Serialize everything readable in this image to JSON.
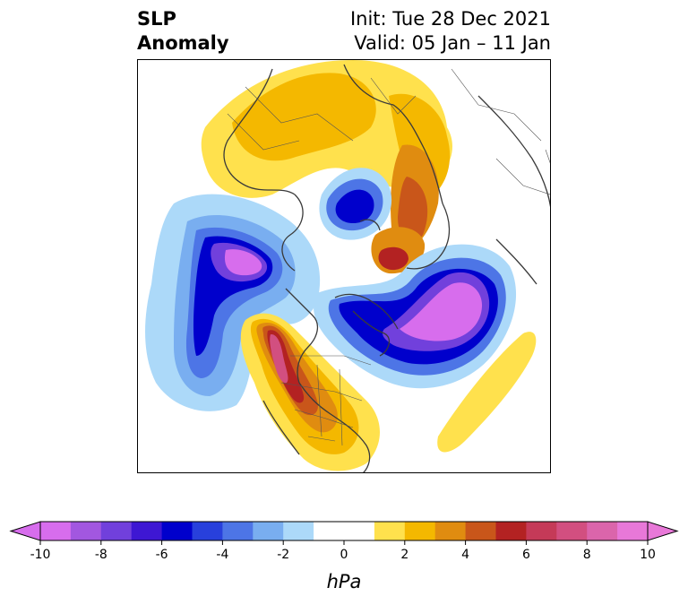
{
  "title": {
    "variable": "SLP",
    "kind": "Anomaly",
    "init": "Init: Tue 28 Dec 2021",
    "valid": "Valid: 05 Jan – 11 Jan"
  },
  "colorbar": {
    "unit": "hPa",
    "tick_labels": [
      "-10",
      "-8",
      "-6",
      "-4",
      "-2",
      "0",
      "2",
      "4",
      "6",
      "8",
      "10"
    ],
    "colors": [
      "#d76ded",
      "#a257e0",
      "#7140dc",
      "#3e17d3",
      "#0000cc",
      "#2840dc",
      "#4d75e6",
      "#79aef0",
      "#acd9f9",
      "#ffffff",
      "#ffffff",
      "#ffe14d",
      "#f4b800",
      "#e08c10",
      "#c9561a",
      "#b32222",
      "#c53a58",
      "#d24f80",
      "#db65ab",
      "#e878d8"
    ]
  }
}
